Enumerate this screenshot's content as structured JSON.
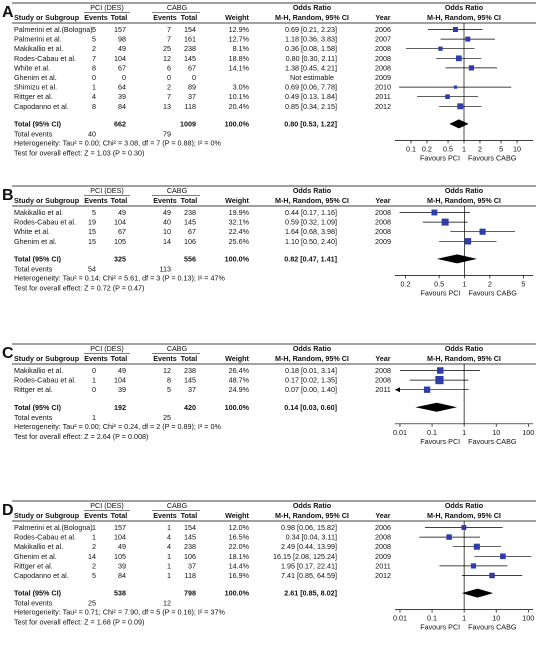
{
  "headers": {
    "study": "Study or Subgroup",
    "group1": "PCI (DES)",
    "group2": "CABG",
    "events": "Events",
    "total": "Total",
    "weight": "Weight",
    "or_title": "Odds Ratio",
    "or_method": "M-H, Random, 95% CI",
    "year": "Year"
  },
  "colors": {
    "marker": "#2f3da8",
    "line": "#000000",
    "text": "#111111"
  },
  "chart_data": [
    {
      "type": "forest",
      "panel_label": "A",
      "x_scale": "log",
      "xlim": [
        0.05,
        20
      ],
      "ticks": [
        "0.1",
        "0.2",
        "0.5",
        "1",
        "2",
        "5",
        "10"
      ],
      "tick_values": [
        0.1,
        0.2,
        0.5,
        1,
        2,
        5,
        10
      ],
      "favours_left": "Favours PCI",
      "favours_right": "Favours CABG",
      "studies": [
        {
          "name": "Palmerini et al.(Bologna)",
          "e1": "5",
          "t1": "157",
          "e2": "7",
          "t2": "154",
          "weight": "12.9%",
          "ci": "0.69 [0.21, 2.23]",
          "year": "2006",
          "or": 0.69,
          "lo": 0.21,
          "hi": 2.23,
          "w": 12.9
        },
        {
          "name": "Palmerini et al.",
          "e1": "5",
          "t1": "98",
          "e2": "7",
          "t2": "161",
          "weight": "12.7%",
          "ci": "1.18 [0.36, 3.83]",
          "year": "2007",
          "or": 1.18,
          "lo": 0.36,
          "hi": 3.83,
          "w": 12.7
        },
        {
          "name": "Makikallio et al.",
          "e1": "2",
          "t1": "49",
          "e2": "25",
          "t2": "238",
          "weight": "8.1%",
          "ci": "0.36 [0.08, 1.58]",
          "year": "2008",
          "or": 0.36,
          "lo": 0.08,
          "hi": 1.58,
          "w": 8.1
        },
        {
          "name": "Rodes-Cabau et al.",
          "e1": "7",
          "t1": "104",
          "e2": "12",
          "t2": "145",
          "weight": "18.8%",
          "ci": "0.80 [0.30, 2.11]",
          "year": "2008",
          "or": 0.8,
          "lo": 0.3,
          "hi": 2.11,
          "w": 18.8
        },
        {
          "name": "White et al.",
          "e1": "8",
          "t1": "67",
          "e2": "6",
          "t2": "67",
          "weight": "14.1%",
          "ci": "1.38 [0.45, 4.21]",
          "year": "2008",
          "or": 1.38,
          "lo": 0.45,
          "hi": 4.21,
          "w": 14.1
        },
        {
          "name": "Ghenim et al.",
          "e1": "0",
          "t1": "0",
          "e2": "0",
          "t2": "0",
          "weight": "",
          "ci": "Not estimable",
          "year": "2009",
          "or": null,
          "lo": null,
          "hi": null,
          "w": 0
        },
        {
          "name": "Shimizu et al.",
          "e1": "1",
          "t1": "64",
          "e2": "2",
          "t2": "89",
          "weight": "3.0%",
          "ci": "0.69 [0.06, 7.78]",
          "year": "2010",
          "or": 0.69,
          "lo": 0.06,
          "hi": 7.78,
          "w": 3.0
        },
        {
          "name": "Rittger et al.",
          "e1": "4",
          "t1": "39",
          "e2": "7",
          "t2": "37",
          "weight": "10.1%",
          "ci": "0.49 [0.13, 1.84]",
          "year": "2011",
          "or": 0.49,
          "lo": 0.13,
          "hi": 1.84,
          "w": 10.1
        },
        {
          "name": "Capodanno et al.",
          "e1": "8",
          "t1": "84",
          "e2": "13",
          "t2": "118",
          "weight": "20.4%",
          "ci": "0.85 [0.34, 2.15]",
          "year": "2012",
          "or": 0.85,
          "lo": 0.34,
          "hi": 2.15,
          "w": 20.4
        }
      ],
      "total": {
        "label": "Total (95% CI)",
        "t1": "662",
        "t2": "1009",
        "weight": "100.0%",
        "ci": "0.80 [0.53, 1.22]",
        "or": 0.8,
        "lo": 0.53,
        "hi": 1.22
      },
      "total_events": {
        "label": "Total events",
        "e1": "40",
        "e2": "79"
      },
      "heterogeneity": "Heterogeneity: Tau² = 0.00; Chi² = 3.08, df = 7 (P = 0.88); I² = 0%",
      "overall_effect": "Test for overall effect: Z = 1.03 (P = 0.30)"
    },
    {
      "type": "forest",
      "panel_label": "B",
      "x_scale": "log",
      "xlim": [
        0.15,
        6.5
      ],
      "ticks": [
        "0.2",
        "0.5",
        "1",
        "2",
        "5"
      ],
      "tick_values": [
        0.2,
        0.5,
        1,
        2,
        5
      ],
      "favours_left": "Favours PCI",
      "favours_right": "Favours CABG",
      "studies": [
        {
          "name": "Makikallio et al.",
          "e1": "5",
          "t1": "49",
          "e2": "49",
          "t2": "238",
          "weight": "19.9%",
          "ci": "0.44 [0.17, 1.16]",
          "year": "2008",
          "or": 0.44,
          "lo": 0.17,
          "hi": 1.16,
          "w": 19.9
        },
        {
          "name": "Rodes-Cabau et al.",
          "e1": "19",
          "t1": "104",
          "e2": "40",
          "t2": "145",
          "weight": "32.1%",
          "ci": "0.59 [0.32, 1.09]",
          "year": "2008",
          "or": 0.59,
          "lo": 0.32,
          "hi": 1.09,
          "w": 32.1
        },
        {
          "name": "White et al.",
          "e1": "15",
          "t1": "67",
          "e2": "10",
          "t2": "67",
          "weight": "22.4%",
          "ci": "1.64 [0.68, 3.98]",
          "year": "2008",
          "or": 1.64,
          "lo": 0.68,
          "hi": 3.98,
          "w": 22.4
        },
        {
          "name": "Ghenim et al.",
          "e1": "15",
          "t1": "105",
          "e2": "14",
          "t2": "106",
          "weight": "25.6%",
          "ci": "1.10 [0.50, 2.40]",
          "year": "2009",
          "or": 1.1,
          "lo": 0.5,
          "hi": 2.4,
          "w": 25.6
        }
      ],
      "total": {
        "label": "Total (95% CI)",
        "t1": "325",
        "t2": "556",
        "weight": "100.0%",
        "ci": "0.82 [0.47, 1.41]",
        "or": 0.82,
        "lo": 0.47,
        "hi": 1.41
      },
      "total_events": {
        "label": "Total events",
        "e1": "54",
        "e2": "113"
      },
      "heterogeneity": "Heterogeneity: Tau² = 0.14; Chi² = 5.61, df = 3 (P = 0.13); I² = 47%",
      "overall_effect": "Test for overall effect: Z = 0.72 (P = 0.47)"
    },
    {
      "type": "forest",
      "panel_label": "C",
      "x_scale": "log",
      "xlim": [
        0.007,
        140
      ],
      "ticks": [
        "0.01",
        "0.1",
        "1",
        "10",
        "100"
      ],
      "tick_values": [
        0.01,
        0.1,
        1,
        10,
        100
      ],
      "favours_left": "Favours PCI",
      "favours_right": "Favours CABG",
      "studies": [
        {
          "name": "Makikallio et al.",
          "e1": "0",
          "t1": "49",
          "e2": "12",
          "t2": "238",
          "weight": "26.4%",
          "ci": "0.18 [0.01, 3.14]",
          "year": "2008",
          "or": 0.18,
          "lo": 0.01,
          "hi": 3.14,
          "w": 26.4
        },
        {
          "name": "Rodes-Cabau et al.",
          "e1": "1",
          "t1": "104",
          "e2": "8",
          "t2": "145",
          "weight": "48.7%",
          "ci": "0.17 [0.02, 1.35]",
          "year": "2008",
          "or": 0.17,
          "lo": 0.02,
          "hi": 1.35,
          "w": 48.7
        },
        {
          "name": "Rittger et al.",
          "e1": "0",
          "t1": "39",
          "e2": "5",
          "t2": "37",
          "weight": "24.9%",
          "ci": "0.07 [0.00, 1.40]",
          "year": "2011",
          "or": 0.07,
          "lo": 0.004,
          "hi": 1.4,
          "w": 24.9
        }
      ],
      "total": {
        "label": "Total (95% CI)",
        "t1": "192",
        "t2": "420",
        "weight": "100.0%",
        "ci": "0.14 [0.03, 0.60]",
        "or": 0.14,
        "lo": 0.03,
        "hi": 0.6
      },
      "total_events": {
        "label": "Total events",
        "e1": "1",
        "e2": "25"
      },
      "heterogeneity": "Heterogeneity: Tau² = 0.00; Chi² = 0.24, df = 2 (P = 0.89); I² = 0%",
      "overall_effect": "Test for overall effect: Z = 2.64 (P = 0.008)"
    },
    {
      "type": "forest",
      "panel_label": "D",
      "x_scale": "log",
      "xlim": [
        0.007,
        140
      ],
      "ticks": [
        "0.01",
        "0.1",
        "1",
        "10",
        "100"
      ],
      "tick_values": [
        0.01,
        0.1,
        1,
        10,
        100
      ],
      "favours_left": "Favours PCI",
      "favours_right": "Favours CABG",
      "studies": [
        {
          "name": "Palmerini et al.(Bologna)",
          "e1": "1",
          "t1": "157",
          "e2": "1",
          "t2": "154",
          "weight": "12.0%",
          "ci": "0.98 [0.06, 15.82]",
          "year": "2006",
          "or": 0.98,
          "lo": 0.06,
          "hi": 15.82,
          "w": 12.0
        },
        {
          "name": "Rodes-Cabau et al.",
          "e1": "1",
          "t1": "104",
          "e2": "4",
          "t2": "145",
          "weight": "16.5%",
          "ci": "0.34 [0.04, 3.11]",
          "year": "2008",
          "or": 0.34,
          "lo": 0.04,
          "hi": 3.11,
          "w": 16.5
        },
        {
          "name": "Makikallio et al.",
          "e1": "2",
          "t1": "49",
          "e2": "4",
          "t2": "238",
          "weight": "22.0%",
          "ci": "2.49 [0.44, 13.99]",
          "year": "2008",
          "or": 2.49,
          "lo": 0.44,
          "hi": 13.99,
          "w": 22.0
        },
        {
          "name": "Ghenim et al.",
          "e1": "14",
          "t1": "105",
          "e2": "1",
          "t2": "106",
          "weight": "18.1%",
          "ci": "16.15 [2.08, 125.24]",
          "year": "2009",
          "or": 16.15,
          "lo": 2.08,
          "hi": 125.24,
          "w": 18.1
        },
        {
          "name": "Rittger et al.",
          "e1": "2",
          "t1": "39",
          "e2": "1",
          "t2": "37",
          "weight": "14.4%",
          "ci": "1.95 [0.17, 22.41]",
          "year": "2011",
          "or": 1.95,
          "lo": 0.17,
          "hi": 22.41,
          "w": 14.4
        },
        {
          "name": "Capodanno et al.",
          "e1": "5",
          "t1": "84",
          "e2": "1",
          "t2": "118",
          "weight": "16.9%",
          "ci": "7.41 [0.85, 64.59]",
          "year": "2012",
          "or": 7.41,
          "lo": 0.85,
          "hi": 64.59,
          "w": 16.9
        }
      ],
      "total": {
        "label": "Total (95% CI)",
        "t1": "538",
        "t2": "798",
        "weight": "100.0%",
        "ci": "2.61 [0.85, 8.02]",
        "or": 2.61,
        "lo": 0.85,
        "hi": 8.02
      },
      "total_events": {
        "label": "Total events",
        "e1": "25",
        "e2": "12"
      },
      "heterogeneity": "Heterogeneity: Tau² = 0.71; Chi² = 7.90, df = 5 (P = 0.16); I² = 37%",
      "overall_effect": "Test for overall effect: Z = 1.68 (P = 0.09)"
    }
  ]
}
